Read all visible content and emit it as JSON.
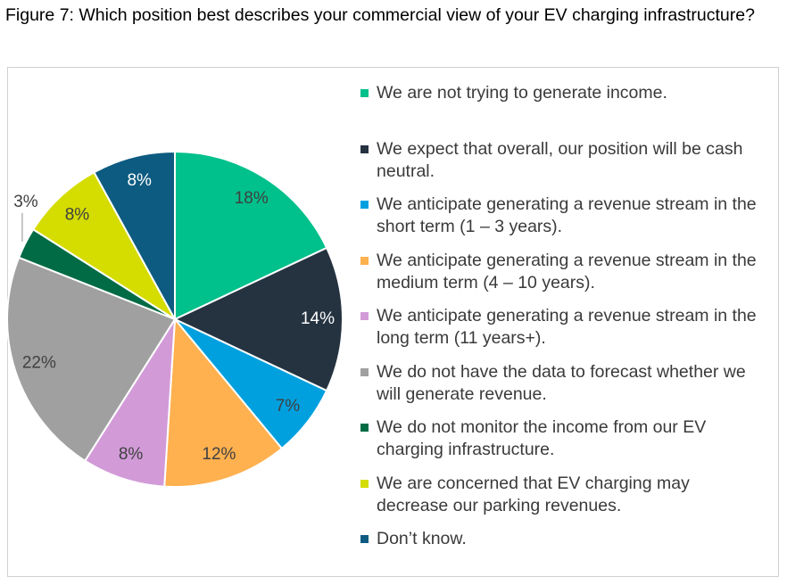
{
  "chart_data": {
    "type": "pie",
    "title": "Figure 7: Which position best describes your commercial view of your EV charging infrastructure?",
    "categories": [
      "We are not trying to generate income.",
      "We expect that overall, our position will be cash neutral.",
      "We anticipate generating a revenue stream in the short term (1 – 3 years).",
      "We anticipate generating a revenue stream in the medium term (4 – 10 years).",
      "We anticipate generating a revenue stream in the long term (11 years+).",
      "We do not have the data to forecast whether we will generate revenue.",
      "We do not monitor the income from our EV charging infrastructure.",
      "We are concerned that EV charging may decrease our parking revenues.",
      "Don’t know."
    ],
    "values": [
      18,
      14,
      7,
      12,
      8,
      22,
      3,
      8,
      8
    ],
    "value_labels": [
      "18%",
      "14%",
      "7%",
      "12%",
      "8%",
      "22%",
      "3%",
      "8%",
      "8%"
    ],
    "colors": [
      "#00c08b",
      "#253341",
      "#00a0df",
      "#ffb04f",
      "#d29bd8",
      "#a0a0a0",
      "#006b45",
      "#d4dc00",
      "#0d5b80"
    ],
    "legend": "right"
  }
}
